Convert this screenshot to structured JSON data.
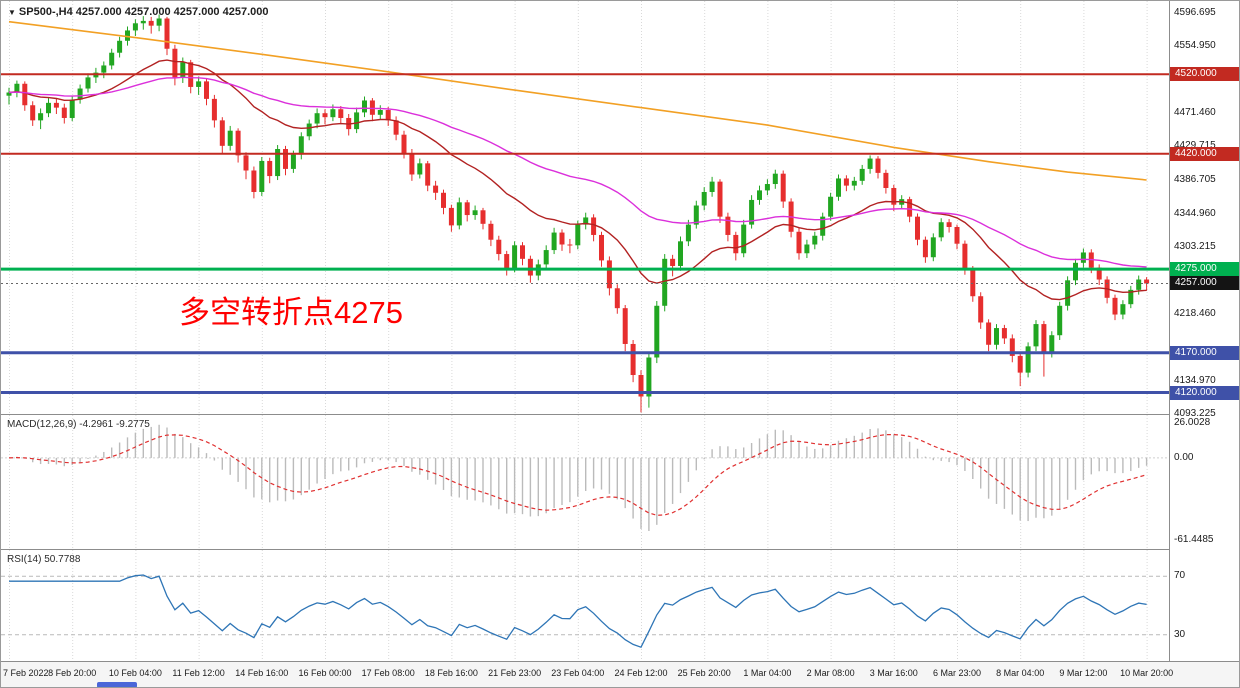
{
  "header": {
    "dropdown_icon": "▼",
    "symbol": "SP500-,H4",
    "ohlc": "4257.000 4257.000 4257.000 4257.000"
  },
  "annotation": {
    "text": "多空转折点4275",
    "color": "#FF0000"
  },
  "scrollbar": {
    "thumb_color": "#4A66D8"
  },
  "chart_data": {
    "type": "candlestick",
    "symbol": "SP500-",
    "timeframe": "H4",
    "up_color": "#21A621",
    "down_color": "#E62E2E",
    "bars_per_gridline": 8,
    "x_labels": [
      "7 Feb 2022",
      "8 Feb 20:00",
      "10 Feb 04:00",
      "11 Feb 12:00",
      "14 Feb 16:00",
      "16 Feb 00:00",
      "17 Feb 08:00",
      "18 Feb 16:00",
      "21 Feb 23:00",
      "23 Feb 04:00",
      "24 Feb 12:00",
      "25 Feb 20:00",
      "1 Mar 04:00",
      "2 Mar 08:00",
      "3 Mar 16:00",
      "6 Mar 23:00",
      "8 Mar 04:00",
      "9 Mar 12:00",
      "10 Mar 20:00"
    ],
    "price_axis": {
      "min": 4093,
      "max": 4612,
      "ticks": [
        {
          "label": "4596.695",
          "value": 4596.695
        },
        {
          "label": "4554.950",
          "value": 4554.95
        },
        {
          "label": "4471.460",
          "value": 4471.46
        },
        {
          "label": "4429.715",
          "value": 4429.715
        },
        {
          "label": "4386.705",
          "value": 4386.705
        },
        {
          "label": "4344.960",
          "value": 4344.96
        },
        {
          "label": "4303.215",
          "value": 4303.215
        },
        {
          "label": "4218.460",
          "value": 4218.46
        },
        {
          "label": "4134.970",
          "value": 4134.97
        },
        {
          "label": "4093.225",
          "value": 4093.225
        }
      ]
    },
    "levels": [
      {
        "label": "4520.000",
        "value": 4520,
        "color": "#C22A21",
        "width": 2
      },
      {
        "label": "4420.000",
        "value": 4420,
        "color": "#C22A21",
        "width": 2
      },
      {
        "label": "4275.000",
        "value": 4275,
        "color": "#00B050",
        "width": 3
      },
      {
        "label": "4170.000",
        "value": 4170,
        "color": "#3F51A8",
        "width": 3
      },
      {
        "label": "4120.000",
        "value": 4120,
        "color": "#3F51A8",
        "width": 3
      }
    ],
    "current_price": {
      "label": "4257.000",
      "value": 4257,
      "badge_color": "#141414",
      "line_color": "#666666"
    },
    "moving_averages": [
      {
        "name": "ma-fast",
        "period": 21,
        "color": "#B22222"
      },
      {
        "name": "ma-slow",
        "period": 55,
        "color": "#DB30DB"
      },
      {
        "name": "ma-trend",
        "color": "#F2A024",
        "points": [
          [
            0,
            4586
          ],
          [
            16,
            4566
          ],
          [
            32,
            4545
          ],
          [
            48,
            4523
          ],
          [
            64,
            4500
          ],
          [
            80,
            4478
          ],
          [
            96,
            4456
          ],
          [
            112,
            4428
          ],
          [
            124,
            4410
          ],
          [
            134,
            4397
          ],
          [
            144,
            4387
          ]
        ]
      }
    ],
    "candles": [
      [
        4493,
        4503,
        4482,
        4497
      ],
      [
        4497,
        4512,
        4491,
        4508
      ],
      [
        4508,
        4511,
        4474,
        4481
      ],
      [
        4481,
        4486,
        4455,
        4462
      ],
      [
        4462,
        4477,
        4451,
        4471
      ],
      [
        4471,
        4490,
        4466,
        4484
      ],
      [
        4484,
        4489,
        4470,
        4478
      ],
      [
        4478,
        4483,
        4458,
        4465
      ],
      [
        4465,
        4493,
        4461,
        4488
      ],
      [
        4488,
        4507,
        4483,
        4502
      ],
      [
        4502,
        4521,
        4497,
        4516
      ],
      [
        4516,
        4528,
        4509,
        4522
      ],
      [
        4522,
        4536,
        4515,
        4531
      ],
      [
        4531,
        4552,
        4526,
        4547
      ],
      [
        4547,
        4567,
        4541,
        4562
      ],
      [
        4562,
        4580,
        4556,
        4575
      ],
      [
        4575,
        4589,
        4568,
        4584
      ],
      [
        4584,
        4593,
        4576,
        4587
      ],
      [
        4587,
        4592,
        4571,
        4581
      ],
      [
        4581,
        4595,
        4574,
        4590
      ],
      [
        4590,
        4592,
        4544,
        4552
      ],
      [
        4552,
        4557,
        4506,
        4516
      ],
      [
        4516,
        4541,
        4509,
        4535
      ],
      [
        4535,
        4538,
        4496,
        4504
      ],
      [
        4504,
        4517,
        4494,
        4511
      ],
      [
        4511,
        4514,
        4481,
        4489
      ],
      [
        4489,
        4494,
        4453,
        4462
      ],
      [
        4462,
        4466,
        4421,
        4430
      ],
      [
        4430,
        4455,
        4424,
        4449
      ],
      [
        4449,
        4452,
        4409,
        4418
      ],
      [
        4418,
        4422,
        4388,
        4399
      ],
      [
        4399,
        4404,
        4364,
        4372
      ],
      [
        4372,
        4416,
        4367,
        4411
      ],
      [
        4411,
        4415,
        4383,
        4392
      ],
      [
        4392,
        4431,
        4387,
        4426
      ],
      [
        4426,
        4430,
        4393,
        4401
      ],
      [
        4401,
        4424,
        4396,
        4419
      ],
      [
        4419,
        4447,
        4413,
        4442
      ],
      [
        4442,
        4463,
        4437,
        4458
      ],
      [
        4458,
        4477,
        4452,
        4471
      ],
      [
        4471,
        4476,
        4457,
        4466
      ],
      [
        4466,
        4482,
        4461,
        4476
      ],
      [
        4476,
        4480,
        4458,
        4465
      ],
      [
        4465,
        4470,
        4443,
        4451
      ],
      [
        4451,
        4478,
        4446,
        4472
      ],
      [
        4472,
        4492,
        4466,
        4487
      ],
      [
        4487,
        4490,
        4461,
        4469
      ],
      [
        4469,
        4481,
        4463,
        4475
      ],
      [
        4475,
        4479,
        4455,
        4462
      ],
      [
        4462,
        4467,
        4437,
        4444
      ],
      [
        4444,
        4449,
        4414,
        4421
      ],
      [
        4421,
        4426,
        4386,
        4394
      ],
      [
        4394,
        4414,
        4389,
        4408
      ],
      [
        4408,
        4411,
        4373,
        4380
      ],
      [
        4380,
        4386,
        4362,
        4371
      ],
      [
        4371,
        4375,
        4344,
        4352
      ],
      [
        4352,
        4356,
        4322,
        4330
      ],
      [
        4330,
        4365,
        4325,
        4359
      ],
      [
        4359,
        4362,
        4335,
        4343
      ],
      [
        4343,
        4355,
        4337,
        4349
      ],
      [
        4349,
        4352,
        4325,
        4332
      ],
      [
        4332,
        4336,
        4304,
        4312
      ],
      [
        4312,
        4317,
        4286,
        4294
      ],
      [
        4294,
        4298,
        4267,
        4276
      ],
      [
        4276,
        4310,
        4271,
        4305
      ],
      [
        4305,
        4309,
        4280,
        4288
      ],
      [
        4288,
        4292,
        4258,
        4267
      ],
      [
        4267,
        4287,
        4261,
        4281
      ],
      [
        4281,
        4305,
        4276,
        4299
      ],
      [
        4299,
        4327,
        4294,
        4321
      ],
      [
        4321,
        4325,
        4298,
        4306
      ],
      [
        4306,
        4313,
        4295,
        4305
      ],
      [
        4305,
        4336,
        4300,
        4331
      ],
      [
        4331,
        4346,
        4325,
        4340
      ],
      [
        4340,
        4344,
        4310,
        4318
      ],
      [
        4318,
        4322,
        4278,
        4286
      ],
      [
        4286,
        4291,
        4242,
        4251
      ],
      [
        4251,
        4256,
        4219,
        4226
      ],
      [
        4226,
        4230,
        4172,
        4181
      ],
      [
        4181,
        4186,
        4133,
        4142
      ],
      [
        4142,
        4148,
        4095,
        4115
      ],
      [
        4115,
        4170,
        4101,
        4164
      ],
      [
        4164,
        4235,
        4157,
        4229
      ],
      [
        4229,
        4294,
        4222,
        4288
      ],
      [
        4288,
        4293,
        4266,
        4279
      ],
      [
        4279,
        4316,
        4273,
        4310
      ],
      [
        4310,
        4337,
        4304,
        4331
      ],
      [
        4331,
        4361,
        4326,
        4355
      ],
      [
        4355,
        4378,
        4349,
        4372
      ],
      [
        4372,
        4391,
        4366,
        4385
      ],
      [
        4385,
        4388,
        4333,
        4341
      ],
      [
        4341,
        4346,
        4310,
        4318
      ],
      [
        4318,
        4322,
        4286,
        4295
      ],
      [
        4295,
        4337,
        4290,
        4331
      ],
      [
        4331,
        4368,
        4326,
        4362
      ],
      [
        4362,
        4380,
        4356,
        4374
      ],
      [
        4374,
        4388,
        4368,
        4382
      ],
      [
        4382,
        4400,
        4376,
        4395
      ],
      [
        4395,
        4399,
        4352,
        4360
      ],
      [
        4360,
        4364,
        4315,
        4322
      ],
      [
        4322,
        4327,
        4287,
        4295
      ],
      [
        4295,
        4312,
        4289,
        4306
      ],
      [
        4306,
        4322,
        4300,
        4317
      ],
      [
        4317,
        4346,
        4311,
        4341
      ],
      [
        4341,
        4371,
        4336,
        4366
      ],
      [
        4366,
        4394,
        4361,
        4389
      ],
      [
        4389,
        4393,
        4373,
        4380
      ],
      [
        4380,
        4391,
        4374,
        4386
      ],
      [
        4386,
        4406,
        4381,
        4401
      ],
      [
        4401,
        4418,
        4395,
        4414
      ],
      [
        4414,
        4417,
        4389,
        4396
      ],
      [
        4396,
        4400,
        4370,
        4377
      ],
      [
        4377,
        4381,
        4348,
        4356
      ],
      [
        4356,
        4368,
        4350,
        4363
      ],
      [
        4363,
        4366,
        4334,
        4341
      ],
      [
        4341,
        4345,
        4305,
        4312
      ],
      [
        4312,
        4316,
        4283,
        4290
      ],
      [
        4290,
        4320,
        4285,
        4315
      ],
      [
        4315,
        4339,
        4310,
        4334
      ],
      [
        4334,
        4338,
        4321,
        4328
      ],
      [
        4328,
        4331,
        4300,
        4307
      ],
      [
        4307,
        4311,
        4268,
        4275
      ],
      [
        4275,
        4279,
        4234,
        4241
      ],
      [
        4241,
        4246,
        4200,
        4208
      ],
      [
        4208,
        4212,
        4172,
        4180
      ],
      [
        4180,
        4206,
        4174,
        4201
      ],
      [
        4201,
        4205,
        4181,
        4188
      ],
      [
        4188,
        4193,
        4158,
        4166
      ],
      [
        4166,
        4171,
        4128,
        4145
      ],
      [
        4145,
        4183,
        4139,
        4178
      ],
      [
        4178,
        4211,
        4172,
        4206
      ],
      [
        4206,
        4210,
        4140,
        4170
      ],
      [
        4170,
        4197,
        4164,
        4192
      ],
      [
        4192,
        4234,
        4186,
        4229
      ],
      [
        4229,
        4266,
        4223,
        4261
      ],
      [
        4261,
        4288,
        4255,
        4283
      ],
      [
        4283,
        4301,
        4277,
        4296
      ],
      [
        4296,
        4300,
        4270,
        4277
      ],
      [
        4277,
        4281,
        4255,
        4262
      ],
      [
        4262,
        4266,
        4232,
        4239
      ],
      [
        4239,
        4243,
        4211,
        4218
      ],
      [
        4218,
        4236,
        4212,
        4231
      ],
      [
        4231,
        4254,
        4226,
        4249
      ],
      [
        4249,
        4267,
        4243,
        4262
      ],
      [
        4262,
        4265,
        4248,
        4257
      ]
    ],
    "indicators": {
      "macd": {
        "name": "MACD(12,26,9)",
        "value": "-4.2961",
        "signal": "-9.2775",
        "fast": 12,
        "slow": 26,
        "smoothing": 9,
        "histogram_color": "#BBBBBB",
        "signal_color": "#E03030",
        "axis": [
          {
            "label": "26.0028",
            "value": 26.0028
          },
          {
            "label": "0.00",
            "value": 0
          },
          {
            "label": "-61.4485",
            "value": -61.4485
          }
        ]
      },
      "rsi": {
        "name": "RSI(14)",
        "value": "50.7788",
        "period": 14,
        "line_color": "#2E75B6",
        "levels": [
          {
            "label": "70",
            "value": 70
          },
          {
            "label": "30",
            "value": 30
          }
        ]
      }
    }
  }
}
